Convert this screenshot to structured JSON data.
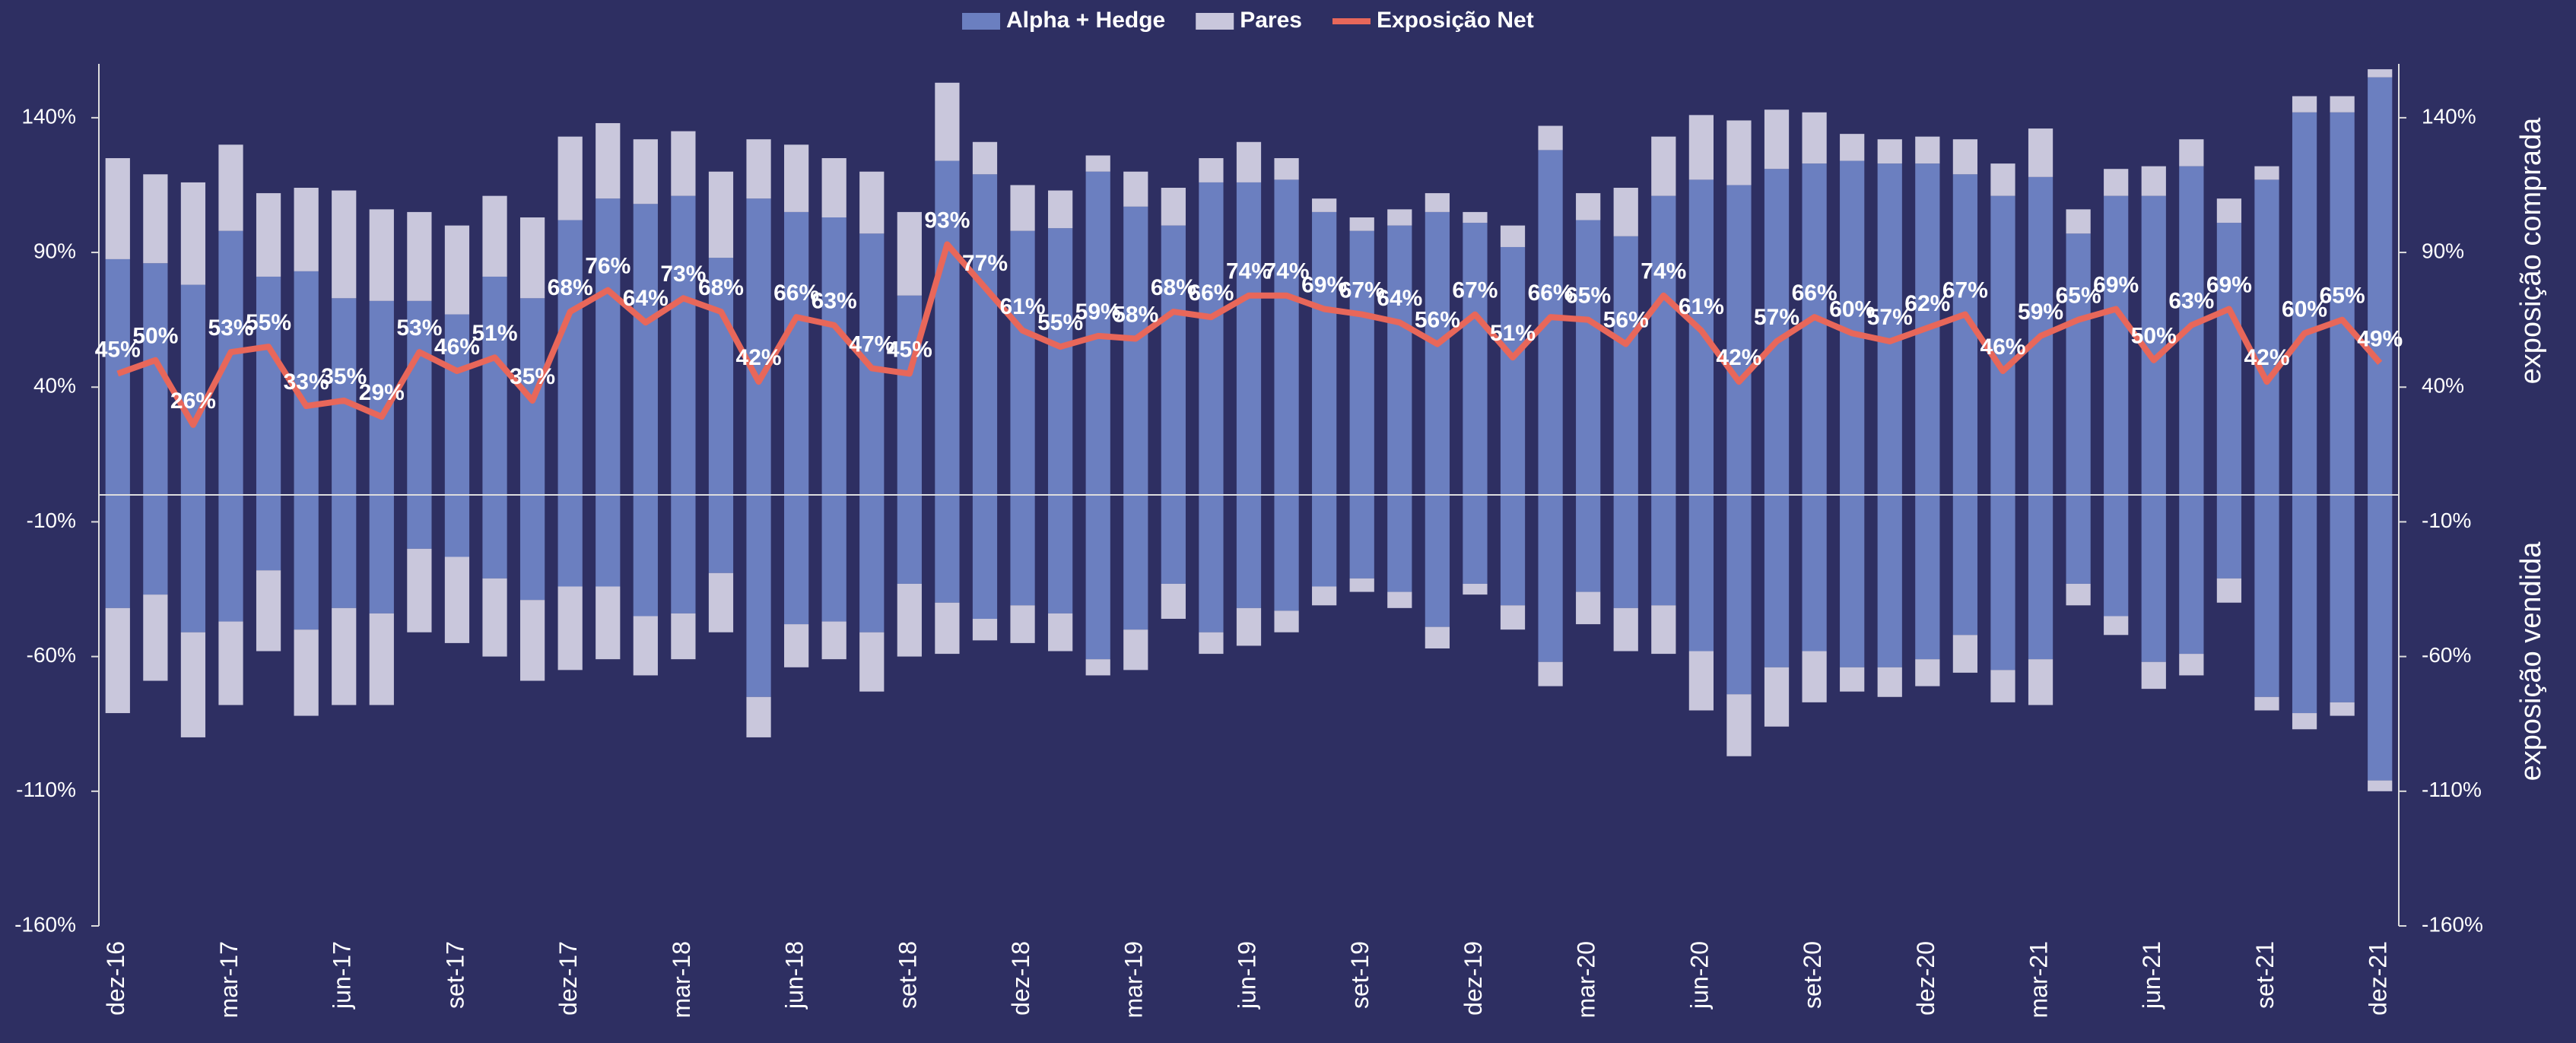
{
  "chart_data": {
    "type": "bar-line",
    "categories": [
      "dez-16",
      null,
      null,
      "mar-17",
      null,
      null,
      "jun-17",
      null,
      null,
      "set-17",
      null,
      null,
      "dez-17",
      null,
      null,
      "mar-18",
      null,
      null,
      "jun-18",
      null,
      null,
      "set-18",
      null,
      null,
      "dez-18",
      null,
      null,
      "mar-19",
      null,
      null,
      "jun-19",
      null,
      null,
      "set-19",
      null,
      null,
      "dez-19",
      null,
      null,
      "mar-20",
      null,
      null,
      "jun-20",
      null,
      null,
      "set-20",
      null,
      null,
      "dez-20",
      null,
      null,
      "mar-21",
      null,
      null,
      "jun-21",
      null,
      null,
      "set-21",
      null,
      null,
      "dez-21"
    ],
    "series": [
      {
        "name": "Alpha + Hedge",
        "color": "#6b7fc0",
        "values": [
          87.5,
          86,
          78,
          98,
          81,
          83,
          73,
          72,
          72,
          67,
          81,
          73,
          102,
          110,
          108,
          111,
          88,
          110,
          105,
          103,
          97,
          74,
          124,
          119,
          98,
          99,
          120,
          107,
          100,
          116,
          116,
          117,
          105,
          98,
          100,
          105,
          101,
          92,
          128,
          102,
          96,
          111,
          117,
          115,
          121,
          123,
          124,
          123,
          123,
          119,
          111,
          118,
          97,
          111,
          111,
          122,
          101,
          117,
          142,
          142,
          155
        ],
        "values_short": [
          -42,
          -37,
          -51,
          -47,
          -28,
          -50,
          -42,
          -44,
          -20,
          -23,
          -31,
          -39,
          -34,
          -34,
          -45,
          -44,
          -29,
          -75,
          -48,
          -47,
          -51,
          -33,
          -40,
          -46,
          -41,
          -44,
          -61,
          -50,
          -33,
          -51,
          -42,
          -43,
          -34,
          -31,
          -36,
          -49,
          -33,
          -41,
          -62,
          -36,
          -42,
          -41,
          -58,
          -74,
          -64,
          -58,
          -64,
          -64,
          -61,
          -52,
          -65,
          -61,
          -33,
          -45,
          -62,
          -59,
          -31,
          -75,
          -81,
          -77,
          -106
        ]
      },
      {
        "name": "Pares",
        "color": "#c9c7dc",
        "values": [
          37.5,
          33,
          38,
          32,
          31,
          31,
          40,
          34,
          33,
          33,
          30,
          30,
          31,
          28,
          24,
          24,
          32,
          22,
          25,
          22,
          23,
          31,
          29,
          12,
          17,
          14,
          6,
          13,
          14,
          9,
          15,
          8,
          5,
          5,
          6,
          7,
          4,
          8,
          9,
          10,
          18,
          22,
          24,
          24,
          22,
          19,
          10,
          9,
          10,
          13,
          12,
          18,
          9,
          10,
          11,
          10,
          9,
          5,
          6,
          6,
          3
        ],
        "values_short": [
          -39,
          -32,
          -39,
          -31,
          -30,
          -32,
          -36,
          -34,
          -31,
          -32,
          -29,
          -30,
          -31,
          -27,
          -22,
          -17,
          -22,
          -15,
          -16,
          -14,
          -22,
          -27,
          -19,
          -8,
          -14,
          -14,
          -6,
          -15,
          -13,
          -8,
          -14,
          -8,
          -7,
          -5,
          -6,
          -8,
          -4,
          -9,
          -9,
          -12,
          -16,
          -18,
          -22,
          -23,
          -22,
          -19,
          -9,
          -11,
          -10,
          -14,
          -12,
          -17,
          -8,
          -7,
          -10,
          -8,
          -9,
          -5,
          -6,
          -5,
          -4
        ]
      },
      {
        "name": "Exposição Net",
        "color": "#e8675a",
        "type": "line",
        "values": [
          45,
          50,
          26,
          53,
          55,
          33,
          35,
          29,
          53,
          46,
          51,
          35,
          68,
          76,
          64,
          73,
          68,
          42,
          66,
          63,
          47,
          45,
          93,
          77,
          61,
          55,
          59,
          58,
          68,
          66,
          74,
          74,
          69,
          67,
          64,
          56,
          67,
          51,
          66,
          65,
          56,
          74,
          61,
          42,
          57,
          66,
          60,
          57,
          62,
          67,
          46,
          59,
          65,
          69,
          50,
          63,
          69,
          42,
          60,
          65,
          49
        ],
        "value_labels": [
          "45%",
          "50%",
          "26%",
          "53%",
          "55%",
          "33%",
          "35%",
          "29%",
          "53%",
          "46%",
          "51%",
          "35%",
          "68%",
          "76%",
          "64%",
          "73%",
          "68%",
          "42%",
          "66%",
          "63%",
          "47%",
          "45%",
          "93%",
          "77%",
          "61%",
          "55%",
          "59%",
          "58%",
          "68%",
          "66%",
          "74%",
          "74%",
          "69%",
          "67%",
          "64%",
          "56%",
          "67%",
          "51%",
          "66%",
          "65%",
          "56%",
          "74%",
          "61%",
          "42%",
          "57%",
          "66%",
          "60%",
          "57%",
          "62%",
          "67%",
          "46%",
          "59%",
          "65%",
          "69%",
          "50%",
          "63%",
          "69%",
          "42%",
          "60%",
          "65%",
          "49%"
        ]
      }
    ],
    "ylim": [
      -160,
      160
    ],
    "yticks": [
      {
        "value": -160,
        "label": "-160%"
      },
      {
        "value": -110,
        "label": "-110%"
      },
      {
        "value": -60,
        "label": "-60%"
      },
      {
        "value": -10,
        "label": "-10%"
      },
      {
        "value": 40,
        "label": "40%"
      },
      {
        "value": 90,
        "label": "90%"
      },
      {
        "value": 140,
        "label": "140%"
      }
    ],
    "y2_label_top": "exposição comprada",
    "y2_label_bottom": "exposição vendida"
  }
}
